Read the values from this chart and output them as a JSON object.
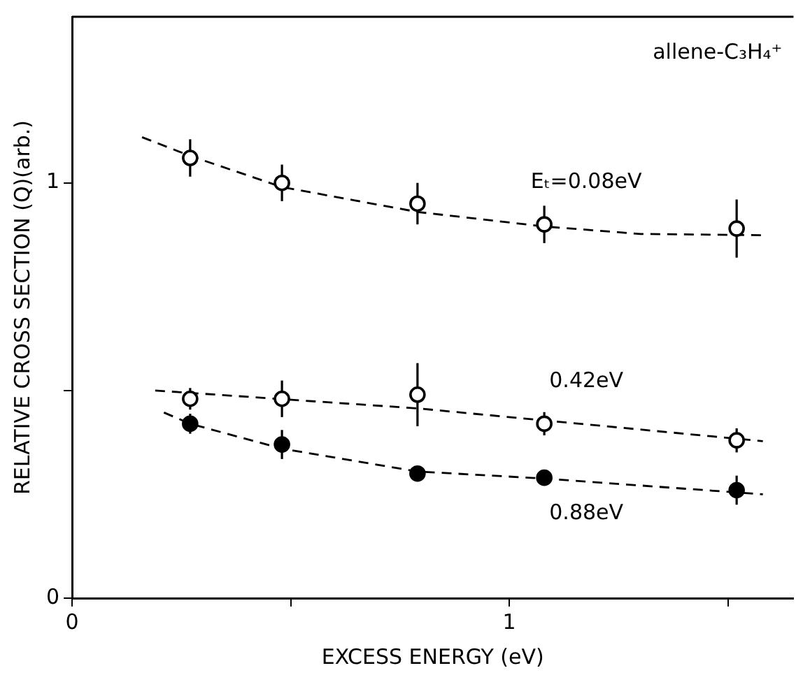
{
  "chart_data": {
    "type": "scatter",
    "xlabel": "EXCESS ENERGY (eV)",
    "ylabel": "RELATIVE CROSS SECTION (Q)(arb.)",
    "xlim": [
      0,
      1.65
    ],
    "xticks": [
      0,
      {
        "value": 0.5,
        "label": null
      },
      1,
      {
        "value": 1.5,
        "label": null
      }
    ],
    "ylim": [
      0,
      1.4
    ],
    "yticks": [
      0,
      {
        "value": 0.5,
        "label": null
      },
      1
    ],
    "grid": false,
    "legend": false,
    "marker": "circle",
    "annotations": [
      "allene-C₃H₄⁺"
    ],
    "series": [
      {
        "name": "Eₜ=0.08eV",
        "color": "#000000",
        "x": [
          0.27,
          0.48,
          0.79,
          1.08,
          1.52
        ],
        "values": [
          1.06,
          1.0,
          0.95,
          0.9,
          0.89
        ],
        "errors": [
          0.045,
          0.044,
          0.05,
          0.045,
          0.07
        ]
      },
      {
        "name": "0.42eV",
        "color": "#000000",
        "x": [
          0.27,
          0.48,
          0.79,
          1.08,
          1.52
        ],
        "values": [
          0.48,
          0.48,
          0.49,
          0.42,
          0.38
        ],
        "errors": [
          0.026,
          0.044,
          0.076,
          0.028,
          0.029
        ]
      },
      {
        "name": "0.88eV",
        "color": "#000000",
        "x": [
          0.27,
          0.48,
          0.79,
          1.08,
          1.52
        ],
        "values": [
          0.42,
          0.37,
          0.3,
          0.29,
          0.26
        ],
        "errors": [
          0.024,
          0.035,
          null,
          null,
          0.035
        ]
      },
      {
        "type": "line",
        "color": "#000000",
        "line_style": "dashed",
        "marker": "none",
        "x": [
          0.16,
          0.27,
          0.48,
          0.79,
          1.08,
          1.3,
          1.58
        ],
        "values": [
          1.11,
          1.065,
          0.99,
          0.93,
          0.895,
          0.877,
          0.874
        ]
      },
      {
        "type": "line",
        "color": "#000000",
        "line_style": "dashed",
        "marker": "none",
        "x": [
          0.19,
          0.79,
          1.58
        ],
        "values": [
          0.5,
          0.457,
          0.378
        ]
      },
      {
        "type": "line",
        "color": "#000000",
        "line_style": "dashed",
        "marker": "none",
        "x": [
          0.21,
          0.27,
          0.48,
          0.79,
          1.08,
          1.58
        ],
        "values": [
          0.447,
          0.42,
          0.36,
          0.305,
          0.288,
          0.25
        ]
      }
    ]
  }
}
